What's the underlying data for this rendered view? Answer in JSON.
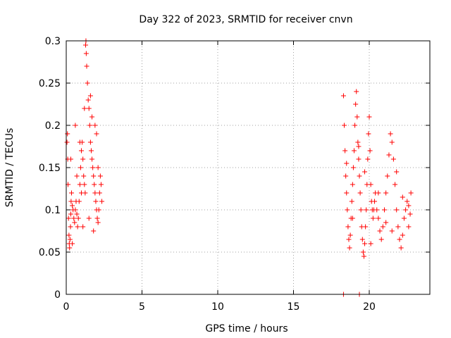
{
  "chart_data": {
    "type": "scatter",
    "title": "Day 322 of 2023, SRMTID for receiver cnvn",
    "xlabel": "GPS time / hours",
    "ylabel": "SRMTID / TECUs",
    "xlim": [
      0,
      24
    ],
    "ylim": [
      0,
      0.3
    ],
    "x_ticks": [
      0,
      5,
      10,
      15,
      20
    ],
    "x_tick_labels": [
      "0",
      "5",
      "10",
      "15",
      "20"
    ],
    "y_ticks": [
      0,
      0.05,
      0.1,
      0.15,
      0.2,
      0.25,
      0.3
    ],
    "y_tick_labels": [
      "0",
      "0.05",
      "0.1",
      "0.15",
      "0.2",
      "0.25",
      "0.3"
    ],
    "grid": true,
    "marker": "plus",
    "series": [
      {
        "name": "SRMTID",
        "color": "#ff0000",
        "points": [
          [
            0.05,
            0.18
          ],
          [
            0.08,
            0.19
          ],
          [
            0.1,
            0.16
          ],
          [
            0.12,
            0.13
          ],
          [
            0.15,
            0.09
          ],
          [
            0.18,
            0.07
          ],
          [
            0.2,
            0.06
          ],
          [
            0.22,
            0.055
          ],
          [
            0.25,
            0.065
          ],
          [
            0.28,
            0.08
          ],
          [
            0.3,
            0.095
          ],
          [
            0.32,
            0.11
          ],
          [
            0.35,
            0.12
          ],
          [
            0.4,
            0.105
          ],
          [
            0.45,
            0.1
          ],
          [
            0.5,
            0.09
          ],
          [
            0.55,
            0.085
          ],
          [
            0.6,
            0.1
          ],
          [
            0.65,
            0.11
          ],
          [
            0.7,
            0.095
          ],
          [
            0.75,
            0.08
          ],
          [
            0.8,
            0.09
          ],
          [
            0.85,
            0.11
          ],
          [
            0.9,
            0.13
          ],
          [
            0.95,
            0.15
          ],
          [
            1.0,
            0.17
          ],
          [
            1.05,
            0.18
          ],
          [
            1.1,
            0.16
          ],
          [
            1.15,
            0.14
          ],
          [
            1.2,
            0.13
          ],
          [
            1.25,
            0.12
          ],
          [
            1.28,
            0.295
          ],
          [
            1.3,
            0.3
          ],
          [
            1.32,
            0.285
          ],
          [
            1.35,
            0.27
          ],
          [
            1.4,
            0.25
          ],
          [
            1.45,
            0.23
          ],
          [
            1.5,
            0.22
          ],
          [
            1.55,
            0.2
          ],
          [
            1.6,
            0.18
          ],
          [
            1.65,
            0.17
          ],
          [
            1.7,
            0.16
          ],
          [
            1.75,
            0.15
          ],
          [
            1.8,
            0.14
          ],
          [
            1.85,
            0.13
          ],
          [
            1.9,
            0.12
          ],
          [
            1.95,
            0.11
          ],
          [
            2.0,
            0.1
          ],
          [
            2.05,
            0.09
          ],
          [
            2.1,
            0.085
          ],
          [
            2.15,
            0.1
          ],
          [
            2.2,
            0.12
          ],
          [
            2.25,
            0.14
          ],
          [
            2.3,
            0.13
          ],
          [
            2.35,
            0.11
          ],
          [
            0.6,
            0.2
          ],
          [
            0.9,
            0.18
          ],
          [
            1.1,
            0.08
          ],
          [
            1.5,
            0.09
          ],
          [
            1.7,
            0.21
          ],
          [
            1.9,
            0.2
          ],
          [
            2.0,
            0.19
          ],
          [
            0.3,
            0.16
          ],
          [
            0.7,
            0.14
          ],
          [
            1.0,
            0.12
          ],
          [
            1.2,
            0.22
          ],
          [
            1.6,
            0.235
          ],
          [
            1.8,
            0.075
          ],
          [
            2.1,
            0.15
          ],
          [
            0.4,
            0.06
          ],
          [
            18.3,
            0.235
          ],
          [
            18.35,
            0.2
          ],
          [
            18.4,
            0.17
          ],
          [
            18.45,
            0.14
          ],
          [
            18.5,
            0.12
          ],
          [
            18.55,
            0.1
          ],
          [
            18.6,
            0.08
          ],
          [
            18.65,
            0.065
          ],
          [
            18.7,
            0.055
          ],
          [
            18.75,
            0.07
          ],
          [
            18.8,
            0.09
          ],
          [
            18.85,
            0.11
          ],
          [
            18.9,
            0.13
          ],
          [
            18.95,
            0.15
          ],
          [
            19.0,
            0.17
          ],
          [
            19.05,
            0.2
          ],
          [
            19.1,
            0.225
          ],
          [
            19.15,
            0.24
          ],
          [
            19.2,
            0.21
          ],
          [
            19.25,
            0.18
          ],
          [
            19.3,
            0.16
          ],
          [
            19.35,
            0.14
          ],
          [
            19.4,
            0.12
          ],
          [
            19.45,
            0.1
          ],
          [
            19.5,
            0.08
          ],
          [
            19.55,
            0.065
          ],
          [
            19.6,
            0.05
          ],
          [
            19.65,
            0.045
          ],
          [
            19.7,
            0.06
          ],
          [
            19.75,
            0.08
          ],
          [
            19.8,
            0.1
          ],
          [
            19.85,
            0.13
          ],
          [
            19.9,
            0.16
          ],
          [
            19.95,
            0.19
          ],
          [
            20.0,
            0.21
          ],
          [
            20.05,
            0.17
          ],
          [
            20.1,
            0.13
          ],
          [
            20.15,
            0.11
          ],
          [
            20.2,
            0.1
          ],
          [
            20.25,
            0.09
          ],
          [
            20.3,
            0.1
          ],
          [
            20.35,
            0.11
          ],
          [
            20.4,
            0.12
          ],
          [
            20.5,
            0.1
          ],
          [
            20.6,
            0.09
          ],
          [
            20.7,
            0.075
          ],
          [
            20.8,
            0.065
          ],
          [
            20.9,
            0.08
          ],
          [
            21.0,
            0.1
          ],
          [
            21.1,
            0.12
          ],
          [
            21.2,
            0.14
          ],
          [
            21.3,
            0.165
          ],
          [
            21.4,
            0.19
          ],
          [
            21.5,
            0.18
          ],
          [
            21.6,
            0.16
          ],
          [
            21.7,
            0.13
          ],
          [
            21.8,
            0.1
          ],
          [
            21.9,
            0.08
          ],
          [
            22.0,
            0.065
          ],
          [
            22.1,
            0.055
          ],
          [
            22.2,
            0.07
          ],
          [
            22.3,
            0.09
          ],
          [
            22.4,
            0.1
          ],
          [
            22.5,
            0.11
          ],
          [
            22.6,
            0.105
          ],
          [
            22.7,
            0.095
          ],
          [
            22.75,
            0.12
          ],
          [
            18.5,
            0.155
          ],
          [
            18.9,
            0.09
          ],
          [
            19.3,
            0.175
          ],
          [
            19.7,
            0.145
          ],
          [
            20.1,
            0.06
          ],
          [
            20.6,
            0.12
          ],
          [
            21.1,
            0.085
          ],
          [
            21.5,
            0.075
          ],
          [
            21.8,
            0.145
          ],
          [
            22.2,
            0.115
          ],
          [
            22.6,
            0.08
          ],
          [
            18.3,
            0.0
          ],
          [
            19.35,
            0.0
          ]
        ]
      }
    ]
  }
}
